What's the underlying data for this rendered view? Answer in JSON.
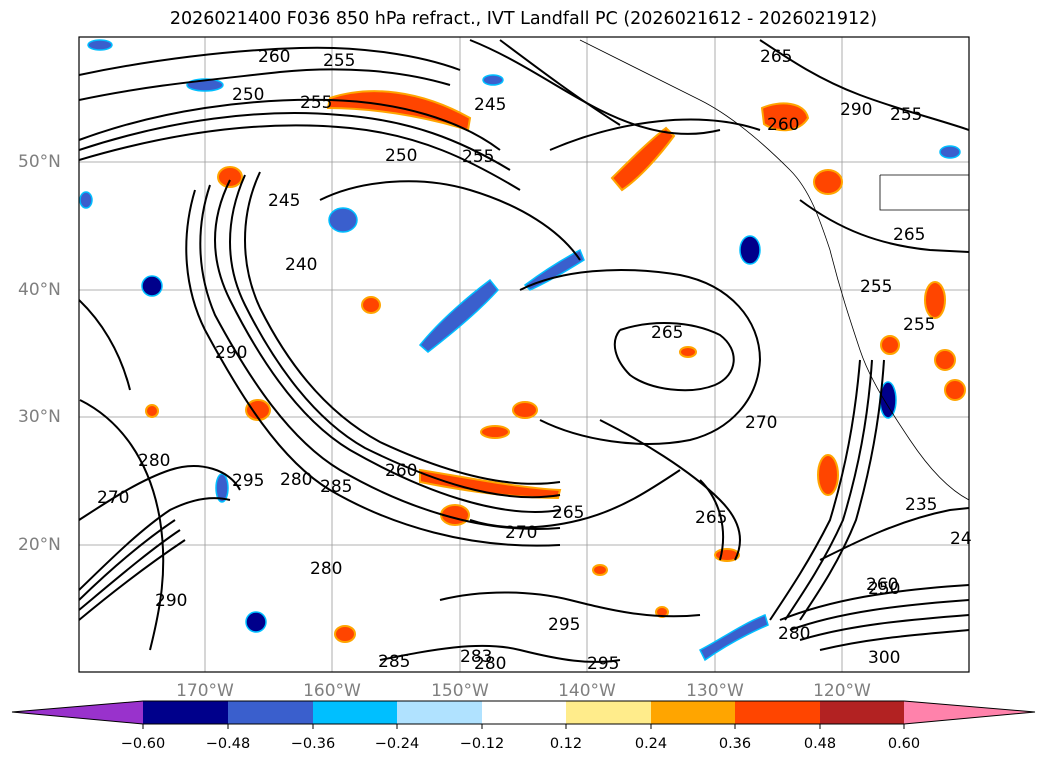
{
  "title": "2026021400 F036 850 hPa refract., IVT Landfall PC (2026021612 - 2026021912)",
  "map": {
    "lat_labels": [
      "50°N",
      "40°N",
      "30°N",
      "20°N"
    ],
    "lon_labels": [
      "170°W",
      "160°W",
      "150°W",
      "140°W",
      "130°W",
      "120°W"
    ],
    "contour_labels": [
      "260",
      "255",
      "250",
      "255",
      "245",
      "250",
      "255",
      "265",
      "260",
      "290",
      "255",
      "245",
      "240",
      "265",
      "265",
      "290",
      "270",
      "295",
      "280",
      "285",
      "260",
      "270",
      "280",
      "265",
      "270",
      "290",
      "280",
      "295",
      "285",
      "283",
      "280",
      "295",
      "300",
      "280",
      "250",
      "260",
      "235",
      "24",
      "255",
      "265",
      "255"
    ]
  },
  "colorbar": {
    "colors": [
      "#9932cc",
      "#00008b",
      "#3a5fcd",
      "#00bfff",
      "#b0e2ff",
      "#ffffff",
      "#ffec8b",
      "#ffa500",
      "#ff4500",
      "#b22222",
      "#ff82ab"
    ],
    "tick_labels": [
      "−0.60",
      "−0.48",
      "−0.36",
      "−0.24",
      "−0.12",
      "0.12",
      "0.24",
      "0.36",
      "0.48",
      "0.60"
    ]
  }
}
